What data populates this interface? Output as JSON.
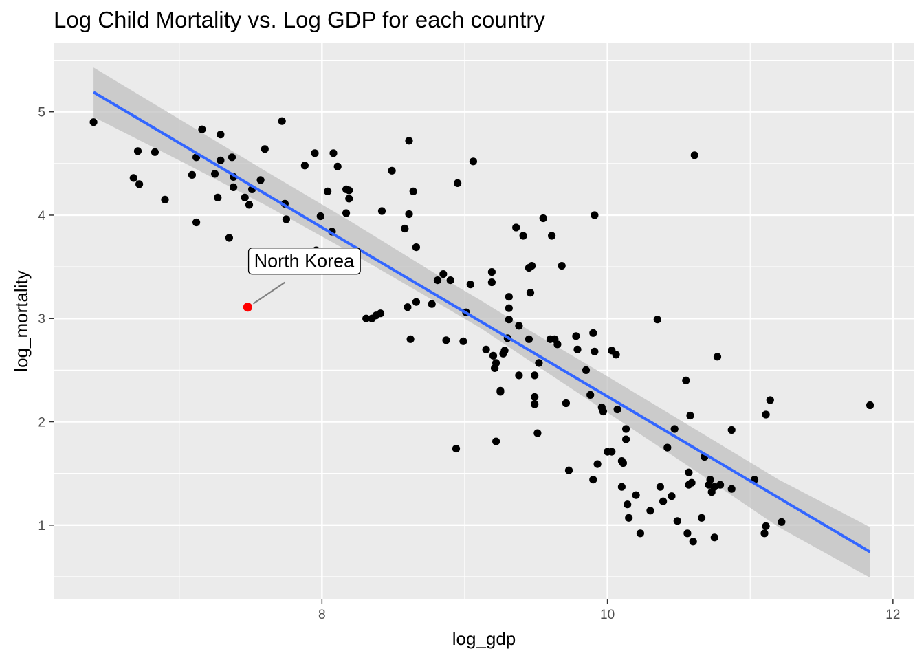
{
  "chart_data": {
    "type": "scatter",
    "title": "Log Child Mortality vs. Log GDP for each country",
    "xlabel": "log_gdp",
    "ylabel": "log_mortality",
    "xlim": [
      6.12,
      12.15
    ],
    "ylim": [
      0.28,
      5.67
    ],
    "x_ticks": [
      8,
      10,
      12
    ],
    "y_ticks": [
      1,
      2,
      3,
      4,
      5
    ],
    "grid": true,
    "legend": "none",
    "colors": {
      "panel": "#ebebeb",
      "grid": "#ffffff",
      "point": "#000000",
      "highlight": "#ff0000",
      "fit_line": "#3366ff",
      "ribbon": "#bdbdbd"
    },
    "points": [
      [
        6.4,
        4.9
      ],
      [
        6.68,
        4.36
      ],
      [
        6.71,
        4.62
      ],
      [
        6.72,
        4.3
      ],
      [
        6.83,
        4.61
      ],
      [
        6.9,
        4.15
      ],
      [
        7.09,
        4.39
      ],
      [
        7.12,
        4.56
      ],
      [
        7.12,
        3.93
      ],
      [
        7.16,
        4.83
      ],
      [
        7.25,
        4.4
      ],
      [
        7.27,
        4.17
      ],
      [
        7.29,
        4.53
      ],
      [
        7.29,
        4.78
      ],
      [
        7.35,
        3.78
      ],
      [
        7.37,
        4.56
      ],
      [
        7.38,
        4.37
      ],
      [
        7.38,
        4.27
      ],
      [
        7.46,
        4.17
      ],
      [
        7.49,
        4.1
      ],
      [
        7.51,
        4.25
      ],
      [
        7.57,
        4.34
      ],
      [
        7.6,
        4.64
      ],
      [
        7.72,
        4.91
      ],
      [
        7.74,
        4.11
      ],
      [
        7.75,
        3.96
      ],
      [
        7.83,
        3.65
      ],
      [
        7.88,
        4.48
      ],
      [
        7.95,
        4.6
      ],
      [
        7.96,
        3.66
      ],
      [
        7.99,
        3.99
      ],
      [
        8.04,
        4.23
      ],
      [
        8.07,
        3.84
      ],
      [
        8.08,
        4.6
      ],
      [
        8.11,
        4.47
      ],
      [
        8.16,
        3.62
      ],
      [
        8.17,
        4.25
      ],
      [
        8.17,
        4.02
      ],
      [
        8.19,
        4.24
      ],
      [
        8.19,
        4.16
      ],
      [
        8.31,
        3.0
      ],
      [
        8.35,
        3.0
      ],
      [
        8.38,
        3.03
      ],
      [
        8.41,
        3.05
      ],
      [
        8.42,
        4.04
      ],
      [
        8.49,
        4.43
      ],
      [
        8.58,
        3.87
      ],
      [
        8.6,
        3.11
      ],
      [
        8.61,
        4.01
      ],
      [
        8.61,
        4.72
      ],
      [
        8.62,
        2.8
      ],
      [
        8.64,
        4.23
      ],
      [
        8.66,
        3.69
      ],
      [
        8.66,
        3.16
      ],
      [
        8.77,
        3.14
      ],
      [
        8.81,
        3.37
      ],
      [
        8.85,
        3.43
      ],
      [
        8.87,
        2.79
      ],
      [
        8.9,
        3.37
      ],
      [
        8.94,
        1.74
      ],
      [
        8.95,
        4.31
      ],
      [
        8.99,
        2.78
      ],
      [
        9.01,
        3.06
      ],
      [
        9.04,
        3.33
      ],
      [
        9.06,
        4.52
      ],
      [
        9.15,
        2.7
      ],
      [
        9.19,
        3.45
      ],
      [
        9.19,
        3.35
      ],
      [
        9.2,
        2.64
      ],
      [
        9.21,
        2.52
      ],
      [
        9.22,
        2.57
      ],
      [
        9.22,
        1.81
      ],
      [
        9.25,
        2.3
      ],
      [
        9.25,
        2.29
      ],
      [
        9.27,
        2.66
      ],
      [
        9.28,
        2.69
      ],
      [
        9.3,
        2.81
      ],
      [
        9.31,
        3.21
      ],
      [
        9.31,
        3.1
      ],
      [
        9.31,
        2.99
      ],
      [
        9.36,
        3.88
      ],
      [
        9.38,
        2.45
      ],
      [
        9.38,
        2.93
      ],
      [
        9.41,
        3.8
      ],
      [
        9.45,
        3.49
      ],
      [
        9.45,
        2.8
      ],
      [
        9.46,
        3.25
      ],
      [
        9.47,
        3.51
      ],
      [
        9.49,
        2.45
      ],
      [
        9.49,
        2.24
      ],
      [
        9.49,
        2.17
      ],
      [
        9.51,
        1.89
      ],
      [
        9.52,
        2.57
      ],
      [
        9.55,
        3.97
      ],
      [
        9.6,
        2.8
      ],
      [
        9.61,
        3.8
      ],
      [
        9.63,
        2.8
      ],
      [
        9.65,
        2.75
      ],
      [
        9.68,
        3.51
      ],
      [
        9.71,
        2.18
      ],
      [
        9.73,
        1.53
      ],
      [
        9.78,
        2.83
      ],
      [
        9.79,
        2.7
      ],
      [
        9.85,
        2.5
      ],
      [
        9.88,
        2.26
      ],
      [
        9.9,
        2.86
      ],
      [
        9.9,
        1.44
      ],
      [
        9.91,
        4.0
      ],
      [
        9.91,
        2.68
      ],
      [
        9.93,
        1.59
      ],
      [
        9.96,
        2.14
      ],
      [
        9.97,
        2.1
      ],
      [
        10.0,
        1.71
      ],
      [
        10.03,
        1.71
      ],
      [
        10.03,
        2.69
      ],
      [
        10.06,
        2.65
      ],
      [
        10.07,
        2.12
      ],
      [
        10.1,
        1.37
      ],
      [
        10.1,
        1.62
      ],
      [
        10.11,
        1.6
      ],
      [
        10.13,
        1.93
      ],
      [
        10.13,
        1.83
      ],
      [
        10.14,
        1.2
      ],
      [
        10.15,
        1.07
      ],
      [
        10.2,
        1.29
      ],
      [
        10.23,
        0.92
      ],
      [
        10.3,
        1.14
      ],
      [
        10.35,
        2.99
      ],
      [
        10.37,
        1.37
      ],
      [
        10.39,
        1.23
      ],
      [
        10.42,
        1.75
      ],
      [
        10.45,
        1.28
      ],
      [
        10.47,
        1.93
      ],
      [
        10.49,
        1.04
      ],
      [
        10.55,
        2.4
      ],
      [
        10.56,
        0.92
      ],
      [
        10.57,
        1.51
      ],
      [
        10.57,
        1.39
      ],
      [
        10.58,
        2.06
      ],
      [
        10.59,
        1.41
      ],
      [
        10.6,
        0.84
      ],
      [
        10.61,
        4.58
      ],
      [
        10.66,
        1.07
      ],
      [
        10.68,
        1.66
      ],
      [
        10.71,
        1.39
      ],
      [
        10.72,
        1.44
      ],
      [
        10.73,
        1.32
      ],
      [
        10.75,
        1.37
      ],
      [
        10.75,
        0.88
      ],
      [
        10.77,
        2.63
      ],
      [
        10.79,
        1.39
      ],
      [
        10.87,
        1.92
      ],
      [
        10.87,
        1.35
      ],
      [
        11.03,
        1.44
      ],
      [
        11.1,
        0.92
      ],
      [
        11.11,
        0.99
      ],
      [
        11.11,
        2.07
      ],
      [
        11.14,
        2.21
      ],
      [
        11.22,
        1.03
      ],
      [
        11.84,
        2.16
      ]
    ],
    "highlight": {
      "label": "North Korea",
      "x": 7.48,
      "y": 3.11
    },
    "fit_line": {
      "x": [
        6.4,
        11.84
      ],
      "y": [
        5.19,
        0.74
      ]
    },
    "ribbon": {
      "x": [
        6.4,
        7.0,
        7.6,
        8.2,
        8.8,
        9.12,
        9.4,
        10.0,
        10.6,
        11.2,
        11.84
      ],
      "lower": [
        4.95,
        4.53,
        4.1,
        3.64,
        3.16,
        2.9,
        2.64,
        2.09,
        1.54,
        0.98,
        0.49
      ],
      "upper": [
        5.43,
        4.93,
        4.43,
        3.94,
        3.43,
        3.17,
        2.93,
        2.44,
        1.94,
        1.44,
        0.98
      ]
    }
  }
}
